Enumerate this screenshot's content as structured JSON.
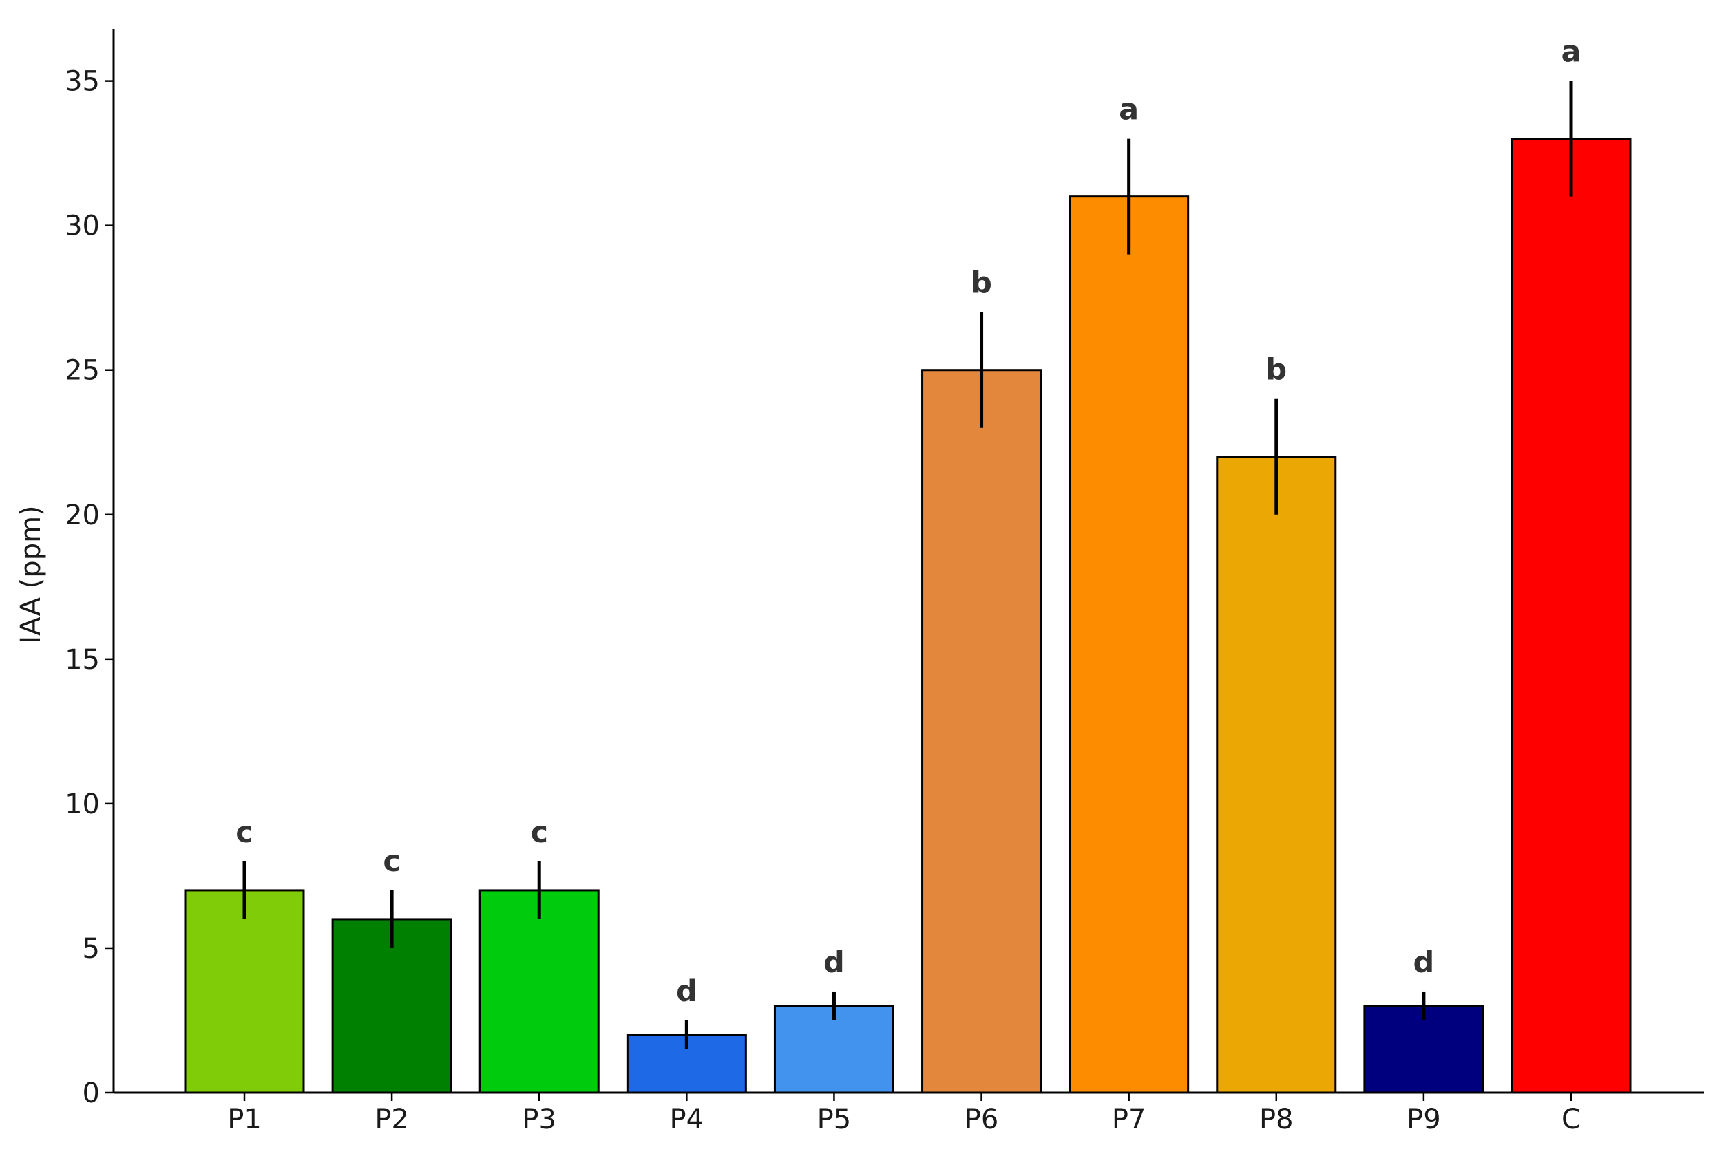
{
  "chart_data": {
    "type": "bar",
    "title": "",
    "xlabel": "",
    "ylabel": "IAA (ppm)",
    "ylim": [
      0,
      36.8
    ],
    "yticks": [
      0,
      5,
      10,
      15,
      20,
      25,
      30,
      35
    ],
    "grid": false,
    "categories": [
      "P1",
      "P2",
      "P3",
      "P4",
      "P5",
      "P6",
      "P7",
      "P8",
      "P9",
      "C"
    ],
    "values": [
      7,
      6,
      7,
      2,
      3,
      25,
      31,
      22,
      3,
      33
    ],
    "errors": [
      1,
      1,
      1,
      0.5,
      0.5,
      2,
      2,
      2,
      0.5,
      2
    ],
    "significance": [
      "c",
      "c",
      "c",
      "d",
      "d",
      "b",
      "a",
      "b",
      "d",
      "a"
    ],
    "colors": [
      "#80CC08",
      "#008000",
      "#00CC0E",
      "#1E69E6",
      "#4293EE",
      "#E3873C",
      "#FE8C00",
      "#EBA704",
      "#00007F",
      "#FE0000"
    ]
  }
}
